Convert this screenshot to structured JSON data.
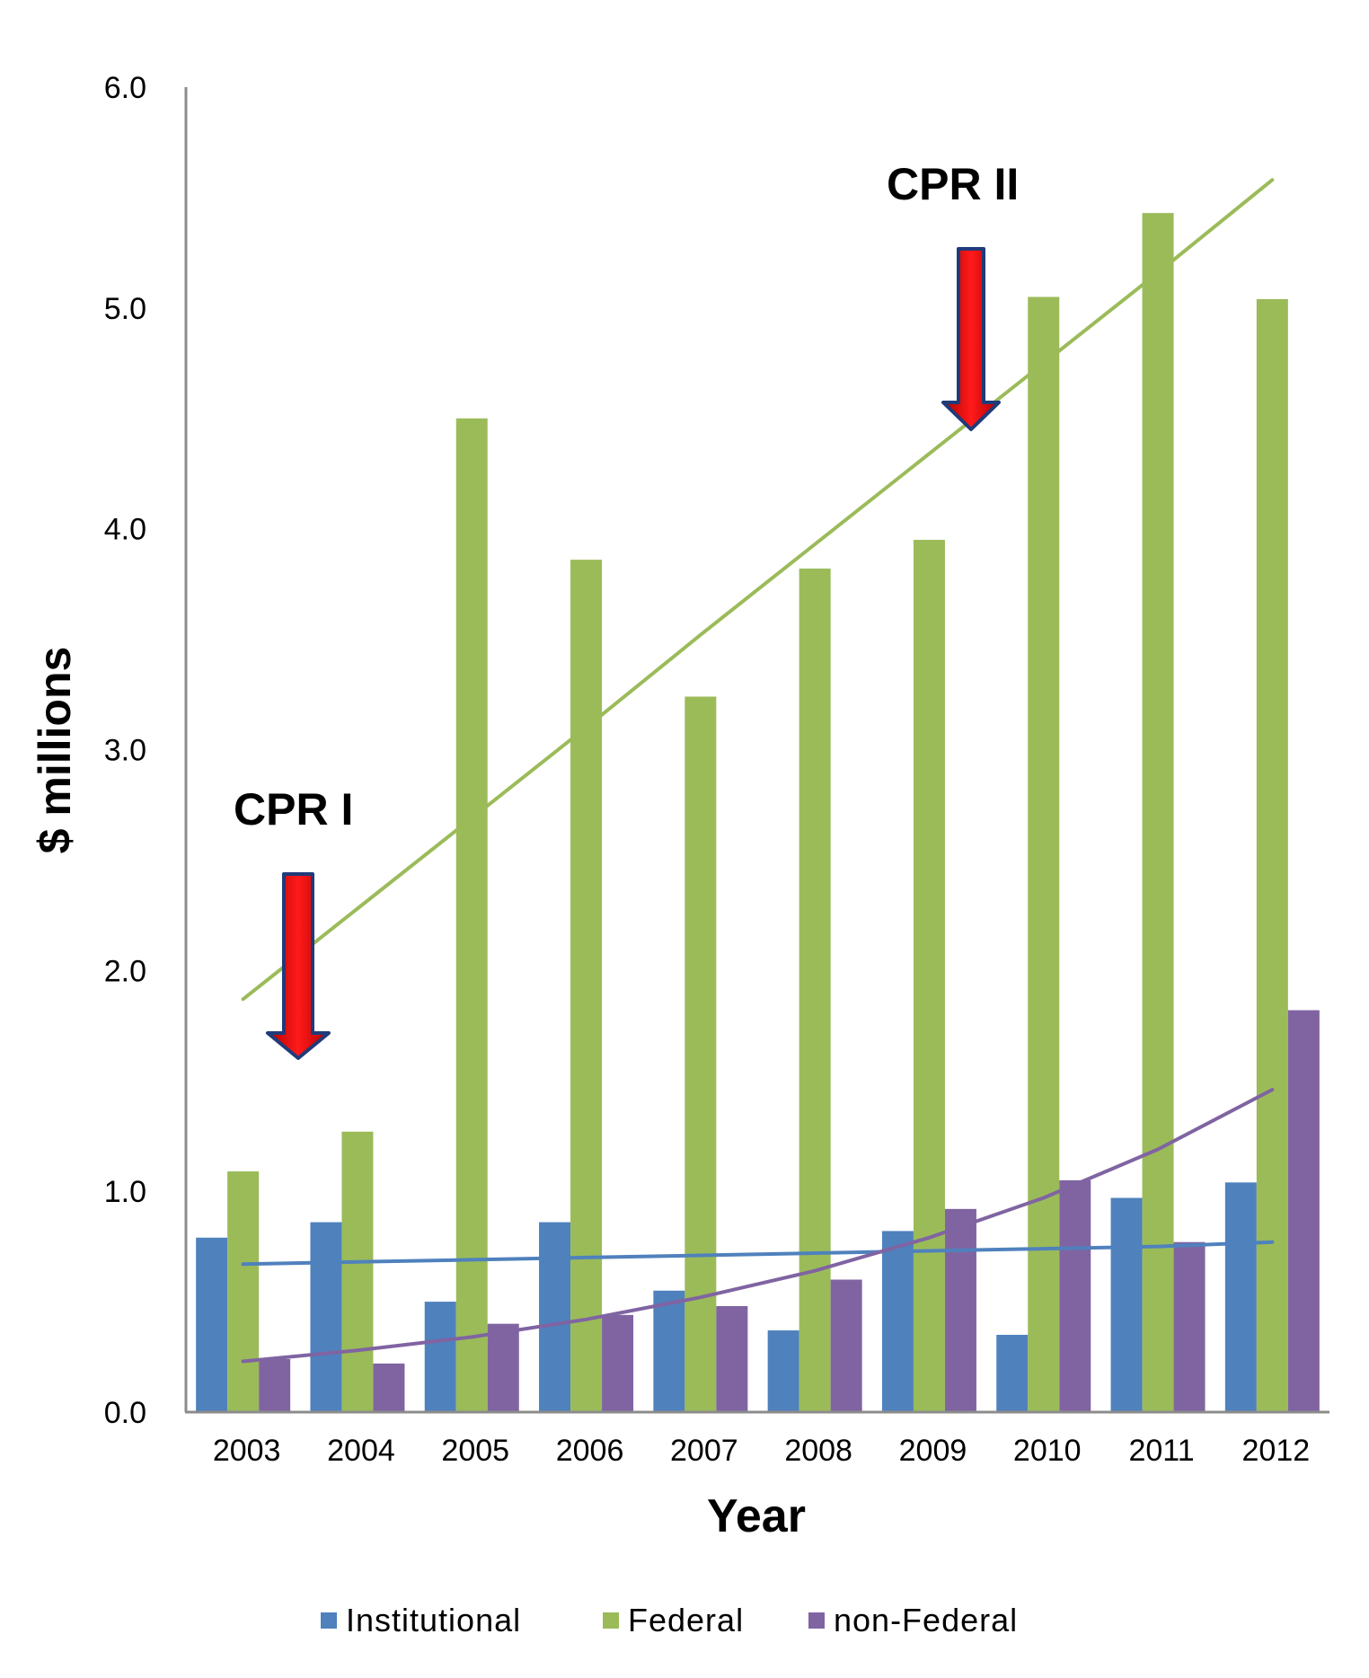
{
  "chart_data": {
    "type": "bar",
    "xlabel": "Year",
    "ylabel": "$ millions",
    "ylim": [
      0,
      6
    ],
    "yticks": [
      "0.0",
      "1.0",
      "2.0",
      "3.0",
      "4.0",
      "5.0",
      "6.0"
    ],
    "grid": false,
    "legend_position": "bottom",
    "categories": [
      "2003",
      "2004",
      "2005",
      "2006",
      "2007",
      "2008",
      "2009",
      "2010",
      "2011",
      "2012"
    ],
    "series": [
      {
        "name": "Institutional",
        "color": "#4f81bd",
        "values": [
          0.79,
          0.86,
          0.5,
          0.86,
          0.55,
          0.37,
          0.82,
          0.35,
          0.97,
          1.04
        ]
      },
      {
        "name": "Federal",
        "color": "#9bbb59",
        "values": [
          1.09,
          1.27,
          4.5,
          3.86,
          3.24,
          3.82,
          3.95,
          5.05,
          5.43,
          5.04
        ]
      },
      {
        "name": "non-Federal",
        "color": "#8064a2",
        "values": [
          0.24,
          0.22,
          0.4,
          0.44,
          0.48,
          0.6,
          0.92,
          1.05,
          0.77,
          1.82
        ]
      }
    ],
    "trendlines": [
      {
        "series": "Institutional",
        "color": "#4f81bd",
        "type": "linear",
        "values": [
          0.67,
          0.68,
          0.69,
          0.7,
          0.71,
          0.72,
          0.73,
          0.74,
          0.75,
          0.77
        ]
      },
      {
        "series": "Federal",
        "color": "#9bbb59",
        "type": "linear",
        "values": [
          1.87,
          2.28,
          2.69,
          3.1,
          3.52,
          3.93,
          4.34,
          4.75,
          5.16,
          5.58
        ]
      },
      {
        "series": "non-Federal",
        "color": "#8064a2",
        "type": "exponential",
        "values": [
          0.23,
          0.28,
          0.34,
          0.42,
          0.52,
          0.64,
          0.79,
          0.97,
          1.19,
          1.46
        ]
      }
    ],
    "annotations": [
      {
        "text": "CPR I",
        "category": "2003"
      },
      {
        "text": "CPR II",
        "category": "2009"
      }
    ]
  }
}
